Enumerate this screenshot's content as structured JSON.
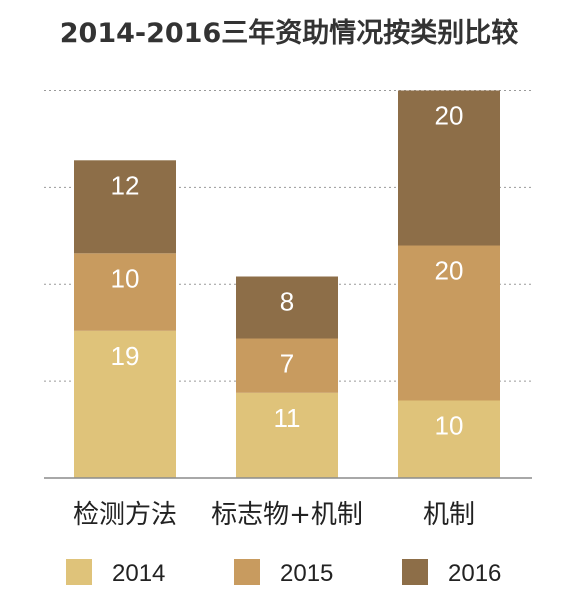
{
  "chart_data": {
    "type": "bar",
    "stacked": true,
    "title": "2014-2016三年资助情况按类别比较",
    "categories": [
      "检测方法",
      "标志物+机制",
      "机制"
    ],
    "series": [
      {
        "name": "2014",
        "values": [
          19,
          11,
          10
        ],
        "color": "#dfc37a"
      },
      {
        "name": "2015",
        "values": [
          10,
          7,
          20
        ],
        "color": "#c89b5f"
      },
      {
        "name": "2016",
        "values": [
          12,
          8,
          20
        ],
        "color": "#8d6e48"
      }
    ],
    "ylim": [
      0,
      50
    ],
    "grid": true,
    "legend_position": "bottom",
    "xlabel": "",
    "ylabel": ""
  }
}
